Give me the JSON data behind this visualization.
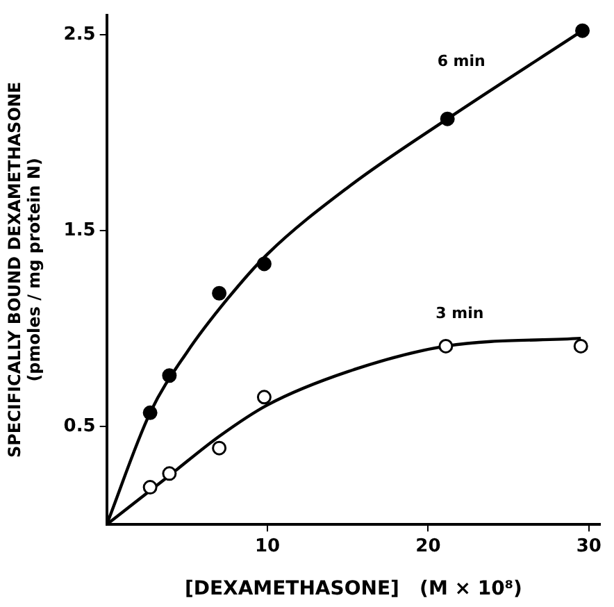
{
  "chart_data": {
    "type": "scatter",
    "xlabel": "[DEXAMETHASONE]   (M × 10⁸)",
    "ylabel": "SPECIFICALLY BOUND DEXAMETHASONE\n(pmoles / mg protein N)",
    "xlim": [
      0,
      30.7
    ],
    "ylim": [
      0,
      2.6
    ],
    "xticks": [
      10,
      20,
      30
    ],
    "yticks": [
      0.5,
      1.5,
      2.5
    ],
    "series": [
      {
        "name": "6 min",
        "color": "#000000",
        "marker": "circle",
        "x": [
          2.7,
          3.9,
          7.0,
          9.8,
          21.2,
          29.6
        ],
        "values": [
          0.57,
          0.76,
          1.18,
          1.33,
          2.07,
          2.52
        ]
      },
      {
        "name": "3 min",
        "color": "#000000",
        "marker": "circle",
        "x": [
          2.7,
          3.9,
          7.0,
          9.8,
          21.1,
          29.5
        ],
        "values": [
          0.19,
          0.26,
          0.39,
          0.65,
          0.91,
          0.91
        ]
      },
      {
        "type": "line",
        "color": "#000000",
        "marker": "none",
        "x": [
          0,
          2.7,
          5,
          7.5,
          10,
          15,
          21.2,
          29.6
        ],
        "values": [
          0,
          0.57,
          0.88,
          1.15,
          1.38,
          1.72,
          2.07,
          2.52
        ]
      },
      {
        "type": "line",
        "color": "#000000",
        "marker": "none",
        "x": [
          0,
          3.9,
          7,
          10,
          15,
          21.1,
          29.5
        ],
        "values": [
          0,
          0.25,
          0.45,
          0.61,
          0.78,
          0.91,
          0.95
        ]
      }
    ]
  }
}
